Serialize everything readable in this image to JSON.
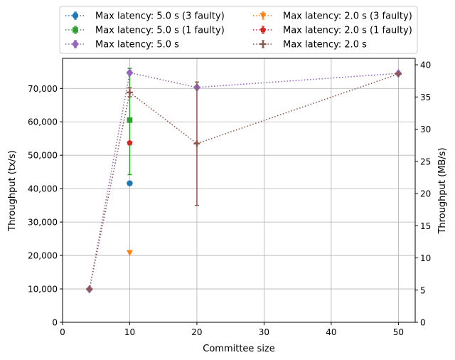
{
  "chart_data": {
    "type": "scatter",
    "xlabel": "Committee size",
    "ylabel": "Throughput (tx/s)",
    "ylabel_right": "Throughput (MB/s)",
    "xlim": [
      0,
      52.5
    ],
    "ylim": [
      0,
      79000
    ],
    "ylim_right": [
      0,
      41.0
    ],
    "xticks": [
      0,
      10,
      20,
      30,
      40,
      50
    ],
    "yticks": [
      0,
      10000,
      20000,
      30000,
      40000,
      50000,
      60000,
      70000
    ],
    "ytick_labels": [
      "0",
      "10,000",
      "20,000",
      "30,000",
      "40,000",
      "50,000",
      "60,000",
      "70,000"
    ],
    "yticks_right": [
      0,
      5,
      10,
      15,
      20,
      25,
      30,
      35,
      40
    ],
    "grid": true,
    "legend_position": "top",
    "series": [
      {
        "name": "Max latency: 5.0 s (3 faulty)",
        "color": "#1f77b4",
        "marker": "circle",
        "points": [
          {
            "x": 10,
            "y": 41600
          }
        ]
      },
      {
        "name": "Max latency: 2.0 s (3 faulty)",
        "color": "#ff7f0e",
        "marker": "triangle-down",
        "points": [
          {
            "x": 10,
            "y": 20800
          }
        ]
      },
      {
        "name": "Max latency: 5.0 s (1 faulty)",
        "color": "#2ca02c",
        "marker": "square",
        "points": [
          {
            "x": 10,
            "y": 60500,
            "err_low": 44200,
            "err_high": 76000
          }
        ]
      },
      {
        "name": "Max latency: 2.0 s (1 faulty)",
        "color": "#d62728",
        "marker": "pentagon",
        "points": [
          {
            "x": 10,
            "y": 53700
          }
        ]
      },
      {
        "name": "Max latency: 5.0 s",
        "color": "#9467bd",
        "marker": "diamond",
        "points": [
          {
            "x": 4,
            "y": 9900
          },
          {
            "x": 10,
            "y": 74700
          },
          {
            "x": 20,
            "y": 70300
          },
          {
            "x": 50,
            "y": 74500
          }
        ]
      },
      {
        "name": "Max latency: 2.0 s",
        "color": "#8c564b",
        "marker": "plus",
        "points": [
          {
            "x": 4,
            "y": 9900
          },
          {
            "x": 10,
            "y": 68800,
            "err_low": 67500,
            "err_high": 70200
          },
          {
            "x": 20,
            "y": 53500,
            "err_low": 35000,
            "err_high": 71900
          },
          {
            "x": 50,
            "y": 74300
          }
        ]
      }
    ]
  }
}
